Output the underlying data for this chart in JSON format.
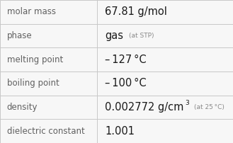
{
  "rows": [
    {
      "label": "molar mass",
      "value": "67.81 g/mol",
      "annotation": "",
      "superscript": ""
    },
    {
      "label": "phase",
      "value": "gas",
      "annotation": "(at STP)",
      "superscript": ""
    },
    {
      "label": "melting point",
      "value": "– 127 °C",
      "annotation": "",
      "superscript": ""
    },
    {
      "label": "boiling point",
      "value": "– 100 °C",
      "annotation": "",
      "superscript": ""
    },
    {
      "label": "density",
      "value": "0.002772 g/cm",
      "annotation": "(at 25 °C)",
      "superscript": "3"
    },
    {
      "label": "dielectric constant",
      "value": "1.001",
      "annotation": "",
      "superscript": ""
    }
  ],
  "bg_color": "#f7f7f7",
  "line_color": "#c8c8c8",
  "label_color": "#606060",
  "value_color": "#1a1a1a",
  "annotation_color": "#888888",
  "col_split": 0.415,
  "label_fontsize": 8.5,
  "value_fontsize": 10.5,
  "annotation_fontsize": 6.5,
  "superscript_fontsize": 6.5
}
